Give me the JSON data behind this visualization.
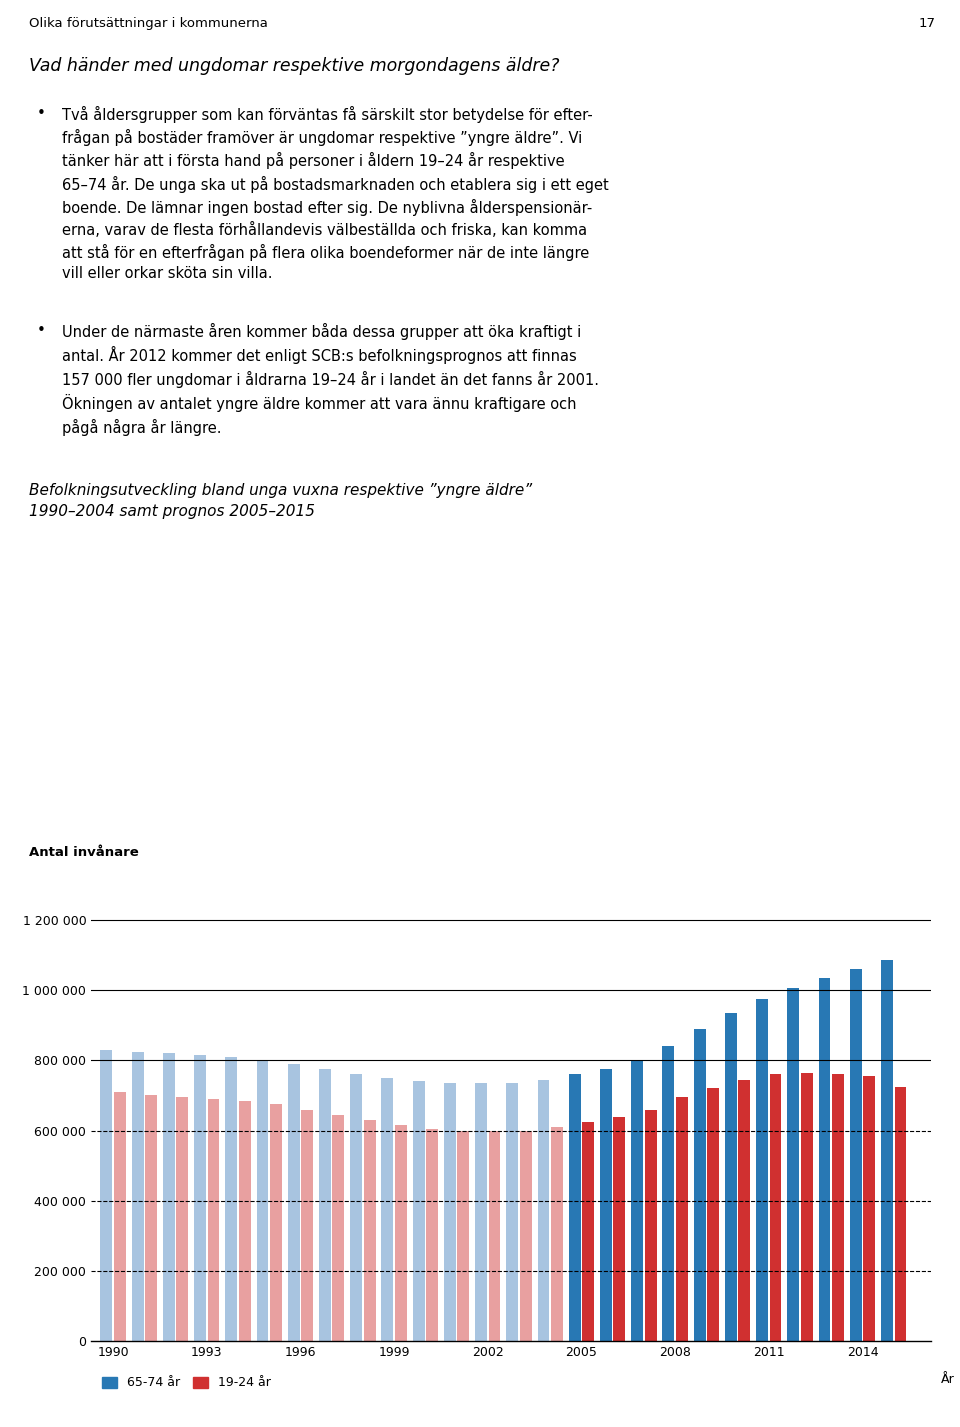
{
  "page_header": "Olika förutsättningar i kommunerna",
  "page_number": "17",
  "question_title": "Vad händer med ungdomar respektive morgondagens äldre?",
  "chart_title_line1": "Befolkningsutveckling bland unga vuxna respektive ”yngre äldre”",
  "chart_title_line2": "1990–2004 samt prognos 2005–2015",
  "ylabel": "Antal invånare",
  "xlabel": "År",
  "ylim": [
    0,
    1300000
  ],
  "yticks": [
    0,
    200000,
    400000,
    600000,
    800000,
    1000000,
    1200000
  ],
  "ytick_labels": [
    "0",
    "200 000",
    "400 000",
    "600 000",
    "800 000",
    "1 000 000",
    "1 200 000"
  ],
  "years": [
    1990,
    1991,
    1992,
    1993,
    1994,
    1995,
    1996,
    1997,
    1998,
    1999,
    2000,
    2001,
    2002,
    2003,
    2004,
    2005,
    2006,
    2007,
    2008,
    2009,
    2010,
    2011,
    2012,
    2013,
    2014,
    2015
  ],
  "xtick_years": [
    1990,
    1993,
    1996,
    1999,
    2002,
    2005,
    2008,
    2011,
    2014
  ],
  "blue_historical": [
    830000,
    825000,
    820000,
    815000,
    810000,
    800000,
    790000,
    775000,
    760000,
    750000,
    740000,
    735000,
    735000,
    735000,
    745000,
    null,
    null,
    null,
    null,
    null,
    null,
    null,
    null,
    null,
    null,
    null
  ],
  "blue_prognosis": [
    null,
    null,
    null,
    null,
    null,
    null,
    null,
    null,
    null,
    null,
    null,
    null,
    null,
    null,
    null,
    760000,
    775000,
    800000,
    840000,
    890000,
    935000,
    975000,
    1005000,
    1035000,
    1060000,
    1085000
  ],
  "red_historical": [
    710000,
    700000,
    695000,
    690000,
    685000,
    675000,
    660000,
    645000,
    630000,
    615000,
    605000,
    600000,
    600000,
    600000,
    610000,
    null,
    null,
    null,
    null,
    null,
    null,
    null,
    null,
    null,
    null,
    null
  ],
  "red_prognosis": [
    null,
    null,
    null,
    null,
    null,
    null,
    null,
    null,
    null,
    null,
    null,
    null,
    null,
    null,
    null,
    625000,
    640000,
    660000,
    695000,
    720000,
    745000,
    760000,
    765000,
    760000,
    755000,
    725000
  ],
  "color_blue_light": "#a8c4e0",
  "color_blue_dark": "#2878b4",
  "color_red_light": "#e8a0a0",
  "color_red_dark": "#d03030",
  "legend_blue_label": "65-74 år",
  "legend_red_label": "19-24 år",
  "bar_width": 0.38,
  "figsize": [
    9.6,
    14.27
  ],
  "dpi": 100
}
